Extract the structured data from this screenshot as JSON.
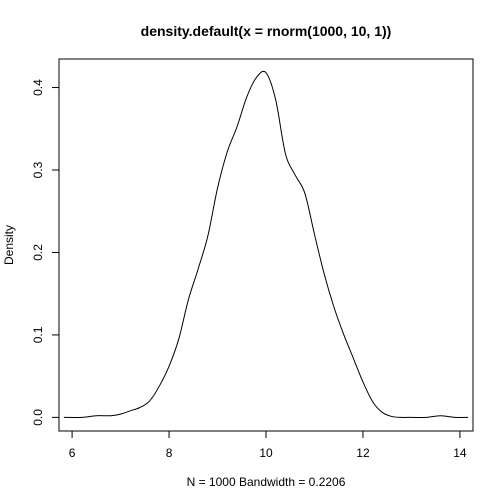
{
  "chart_data": {
    "type": "line",
    "title": "density.default(x = rnorm(1000, 10, 1))",
    "xlabel": "N = 1000   Bandwidth = 0.2206",
    "ylabel": "Density",
    "xlim": [
      5.73,
      14.27
    ],
    "ylim": [
      -0.0165,
      0.4346
    ],
    "x_ticks": [
      "6",
      "8",
      "10",
      "12",
      "14"
    ],
    "y_ticks": [
      "0.0",
      "0.1",
      "0.2",
      "0.3",
      "0.4"
    ],
    "grid": false,
    "series": [
      {
        "x": [
          5.83,
          6.2,
          6.5,
          6.8,
          7.0,
          7.2,
          7.4,
          7.6,
          7.8,
          8.0,
          8.2,
          8.4,
          8.6,
          8.8,
          9.0,
          9.2,
          9.4,
          9.6,
          9.8,
          10.0,
          10.2,
          10.4,
          10.6,
          10.8,
          11.0,
          11.2,
          11.4,
          11.6,
          11.8,
          12.0,
          12.2,
          12.4,
          12.6,
          12.8,
          13.0,
          13.3,
          13.6,
          13.9,
          14.17
        ],
        "y": [
          0.0,
          0.0,
          0.002,
          0.002,
          0.004,
          0.008,
          0.012,
          0.02,
          0.038,
          0.062,
          0.095,
          0.143,
          0.18,
          0.22,
          0.278,
          0.322,
          0.352,
          0.388,
          0.412,
          0.418,
          0.385,
          0.32,
          0.294,
          0.272,
          0.222,
          0.174,
          0.134,
          0.101,
          0.072,
          0.043,
          0.019,
          0.006,
          0.001,
          0.0,
          0.0,
          0.0,
          0.002,
          0.0,
          0.0
        ]
      }
    ]
  }
}
